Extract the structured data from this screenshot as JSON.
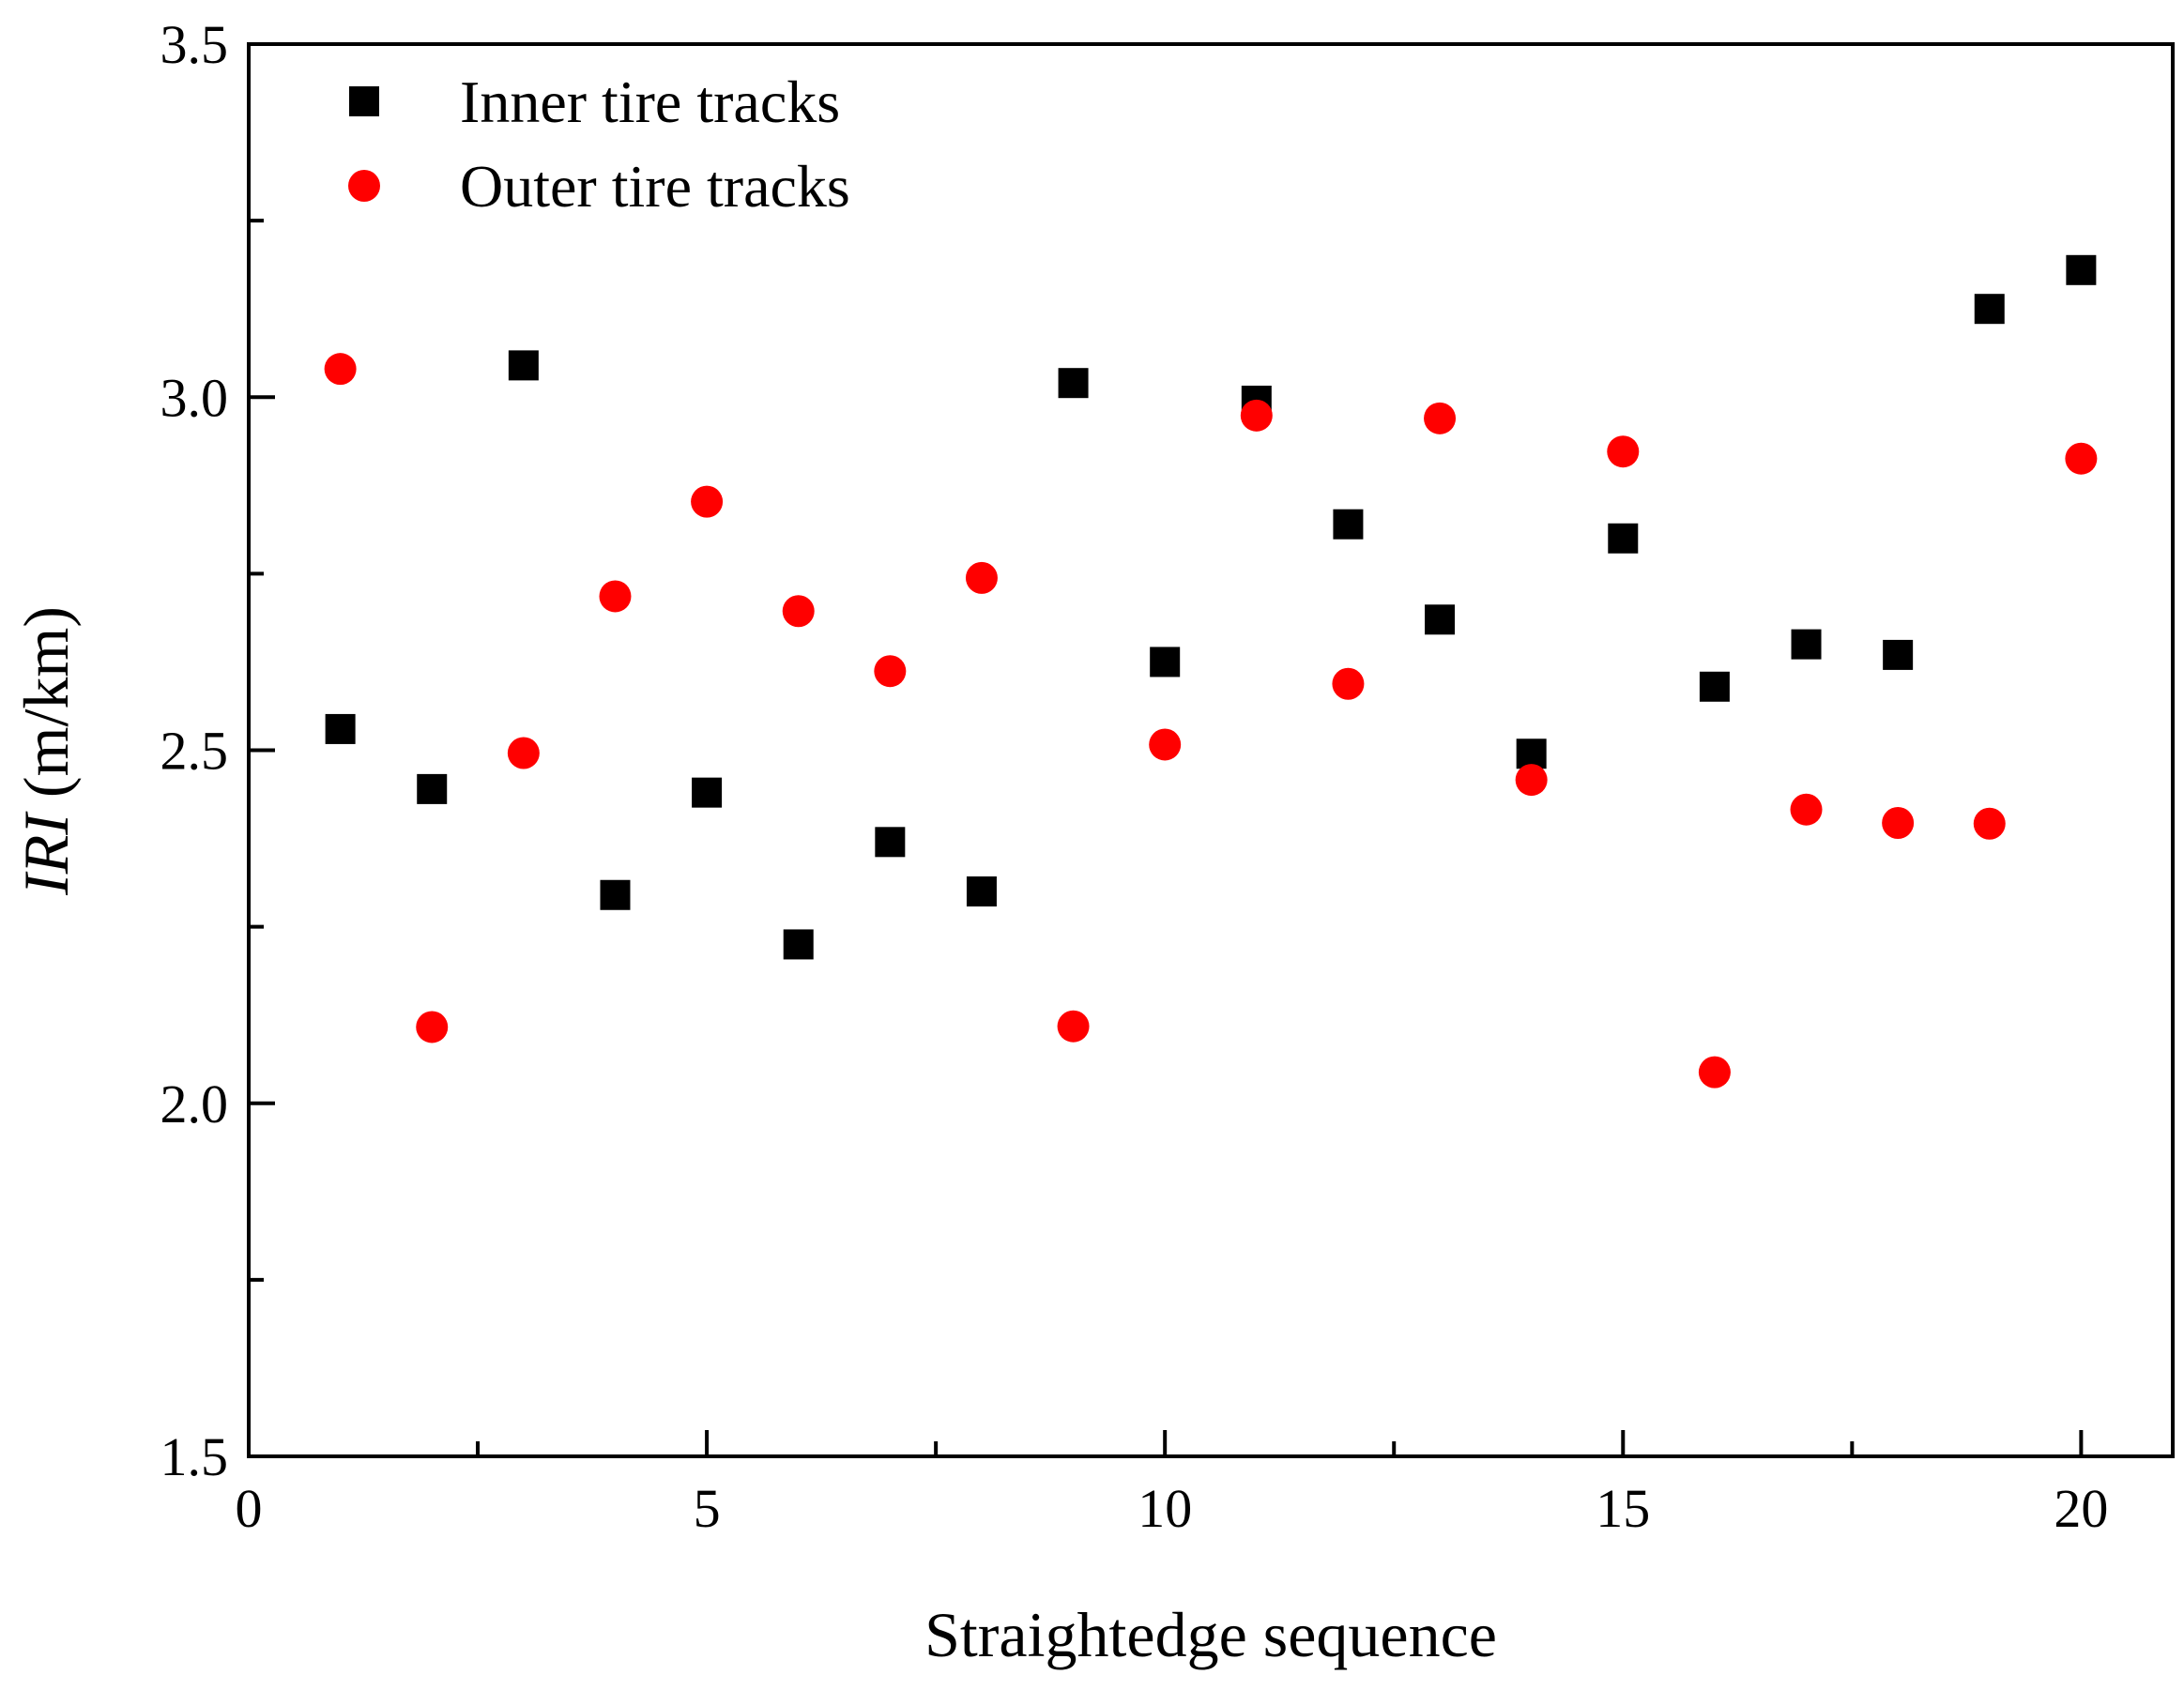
{
  "chart_data": {
    "type": "scatter",
    "title": "",
    "xlabel": "Straightedge sequence",
    "ylabel_italic": "IRI",
    "ylabel_unit": " (m/km)",
    "xlim": [
      0,
      21
    ],
    "ylim": [
      1.5,
      3.5
    ],
    "xticks": [
      0,
      5,
      10,
      15,
      20
    ],
    "xtick_labels": [
      "0",
      "5",
      "10",
      "15",
      "20"
    ],
    "xminor": [
      2.5,
      7.5,
      12.5,
      17.5
    ],
    "yticks": [
      1.5,
      2.0,
      2.5,
      3.0,
      3.5
    ],
    "ytick_labels": [
      "1.5",
      "2.0",
      "2.5",
      "3.0",
      "3.5"
    ],
    "yminor": [
      1.75,
      2.25,
      2.75,
      3.25
    ],
    "grid": false,
    "legend_position": "top-left",
    "series": [
      {
        "name": "Inner tire tracks",
        "marker": "square",
        "color": "#000000",
        "x": [
          1,
          2,
          3,
          4,
          5,
          6,
          7,
          8,
          9,
          10,
          11,
          12,
          13,
          14,
          15,
          16,
          17,
          18,
          19,
          20
        ],
        "y": [
          2.53,
          2.445,
          3.045,
          2.295,
          2.44,
          2.225,
          2.37,
          2.3,
          3.02,
          2.625,
          2.995,
          2.82,
          2.685,
          2.495,
          2.8,
          2.59,
          2.65,
          2.635,
          3.125,
          3.18
        ]
      },
      {
        "name": "Outer tire tracks",
        "marker": "circle",
        "color": "#ff0000",
        "x": [
          1,
          2,
          3,
          4,
          5,
          6,
          7,
          8,
          9,
          10,
          11,
          12,
          13,
          14,
          15,
          16,
          17,
          18,
          19,
          20
        ],
        "y": [
          3.04,
          2.108,
          2.496,
          2.718,
          2.852,
          2.697,
          2.612,
          2.744,
          2.109,
          2.508,
          2.974,
          2.594,
          2.97,
          2.458,
          2.923,
          2.044,
          2.416,
          2.397,
          2.396,
          2.913
        ]
      }
    ]
  }
}
